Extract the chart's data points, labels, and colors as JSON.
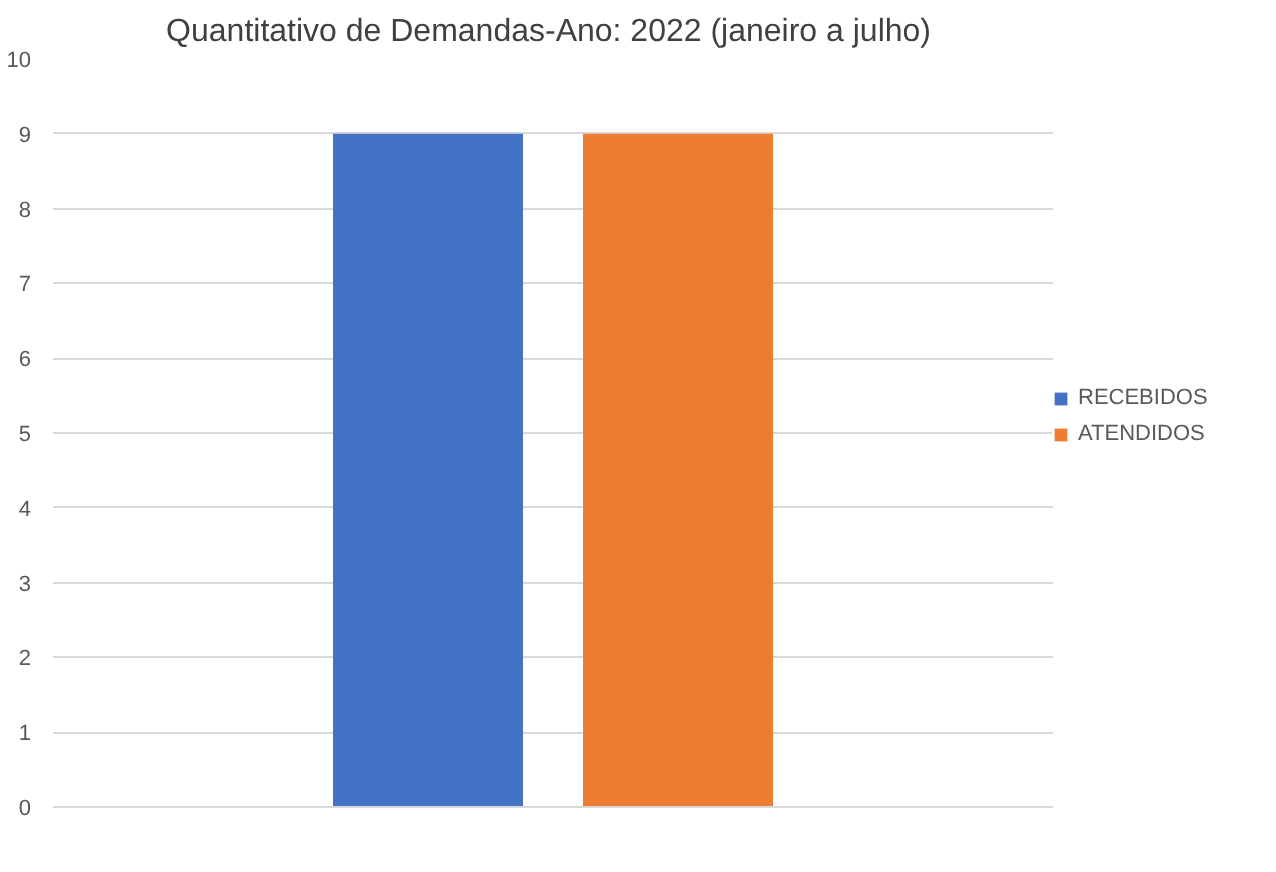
{
  "chart_data": {
    "type": "bar",
    "title": "Quantitativo  de Demandas-Ano: 2022 (janeiro a julho)",
    "categories": [
      null
    ],
    "series": [
      {
        "name": "RECEBIDOS",
        "color": "#4472c4",
        "values": [
          9
        ]
      },
      {
        "name": "ATENDIDOS",
        "color": "#ed7d31",
        "values": [
          9
        ]
      }
    ],
    "ylim": [
      0,
      10
    ],
    "yticks": [
      0,
      1,
      2,
      3,
      4,
      5,
      6,
      7,
      8,
      9,
      10
    ],
    "grid": "y",
    "legend": "right"
  }
}
